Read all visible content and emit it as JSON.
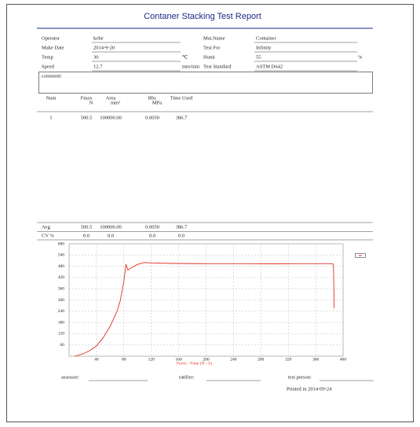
{
  "title": "Contaner Stacking Test Report",
  "fields": {
    "left": [
      {
        "label": "Operator",
        "value": "kobe"
      },
      {
        "label": "Make Date",
        "value": "2014-9-20"
      },
      {
        "label": "Temp",
        "value": "30",
        "unit": "℃"
      },
      {
        "label": "Speed",
        "value": "12.7",
        "unit": "mm/min"
      }
    ],
    "right": [
      {
        "label": "Mat.Name",
        "value": "Container"
      },
      {
        "label": "Test For",
        "value": "Infinity"
      },
      {
        "label": "Humi",
        "value": "55",
        "unit": "%"
      },
      {
        "label": "Test Standard",
        "value": "ASTM D642"
      }
    ]
  },
  "comment": "comment:",
  "table": {
    "header": [
      {
        "name": "Num"
      },
      {
        "name": "Fmax",
        "unit": "N"
      },
      {
        "name": "Area",
        "unit": "mm²"
      },
      {
        "name": "Rbc",
        "unit": "MPa"
      },
      {
        "name": "Time Used"
      }
    ],
    "rows": [
      [
        "1",
        "500.5",
        "100000.00",
        "0.0050",
        "386.7"
      ]
    ],
    "summary": [
      [
        "Avg",
        "500.5",
        "100000.00",
        "0.0050",
        "386.7"
      ],
      [
        "CV %",
        "0.0",
        "0.0",
        "0.0",
        "0.0"
      ]
    ]
  },
  "chart_data": {
    "type": "line",
    "xlabel": "Force - Time (N - S)",
    "color": "#e03020",
    "x": [
      8,
      20,
      30,
      40,
      50,
      60,
      70,
      75,
      80,
      83,
      86,
      90,
      100,
      110,
      120,
      150,
      200,
      250,
      300,
      350,
      385,
      386,
      387
    ],
    "values": [
      0,
      12,
      30,
      55,
      100,
      160,
      240,
      300,
      400,
      490,
      460,
      470,
      490,
      500,
      498,
      495,
      494,
      494,
      493,
      494,
      494,
      480,
      256
    ],
    "xlim": [
      0,
      400
    ],
    "ylim": [
      0,
      600
    ],
    "xticks": [
      40,
      80,
      120,
      160,
      200,
      240,
      280,
      320,
      360,
      400
    ],
    "yticks": [
      60,
      120,
      180,
      240,
      300,
      360,
      420,
      480,
      540,
      600
    ],
    "grid": true
  },
  "signatures": [
    "assessor:",
    "ratifier:",
    "test person:"
  ],
  "printed": "Printed in 2014-09-24"
}
